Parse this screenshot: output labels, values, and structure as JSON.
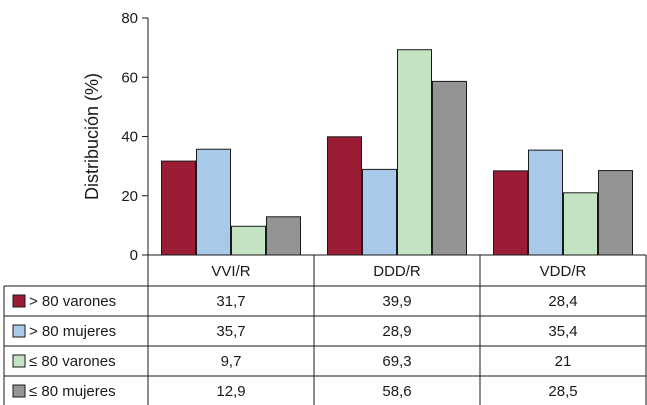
{
  "chart_data": {
    "type": "bar",
    "ylabel": "Distribución (%)",
    "ylim": [
      0,
      80
    ],
    "yticks": [
      "0",
      "20",
      "40",
      "60",
      "80"
    ],
    "categories": [
      "VVI/R",
      "DDD/R",
      "VDD/R"
    ],
    "series": [
      {
        "name": "> 80 varones",
        "color": "#9b1c35",
        "values": [
          31.7,
          39.9,
          28.4
        ],
        "labels": [
          "31,7",
          "39,9",
          "28,4"
        ]
      },
      {
        "name": "> 80 mujeres",
        "color": "#a9c9ea",
        "values": [
          35.7,
          28.9,
          35.4
        ],
        "labels": [
          "35,7",
          "28,9",
          "35,4"
        ]
      },
      {
        "name": "≤ 80 varones",
        "color": "#c4e3c2",
        "values": [
          9.7,
          69.3,
          21
        ],
        "labels": [
          "9,7",
          "69,3",
          "21"
        ]
      },
      {
        "name": "≤ 80 mujeres",
        "color": "#949494",
        "values": [
          12.9,
          58.6,
          28.5
        ],
        "labels": [
          "12,9",
          "58,6",
          "28,5"
        ]
      }
    ],
    "grid": false,
    "legend": "table-below"
  }
}
